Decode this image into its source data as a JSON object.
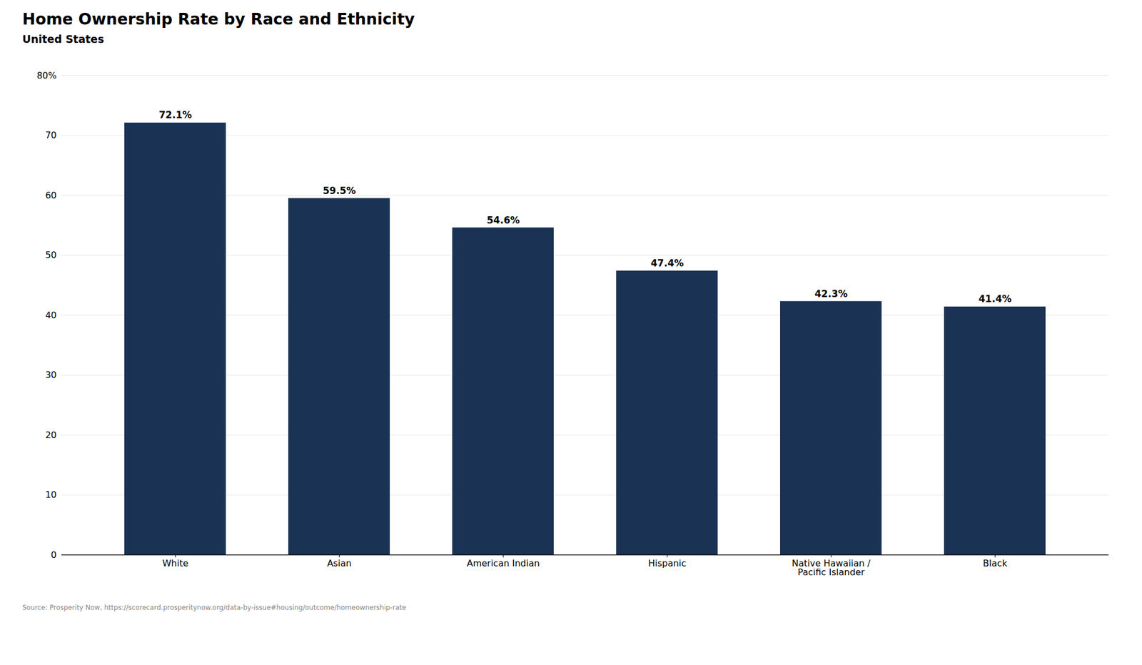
{
  "chart_data": {
    "type": "bar",
    "title": "Home Ownership Rate by Race and Ethnicity",
    "subtitle": "United States",
    "source": "Source: Prosperity Now, https://scorecard.prosperitynow.org/data-by-issue#housing/outcome/homeownership-rate",
    "categories": [
      "White",
      "Asian",
      "American Indian",
      "Hispanic",
      "Native Hawaiian /\nPacific Islander",
      "Black"
    ],
    "values": [
      72.1,
      59.5,
      54.6,
      47.4,
      42.3,
      41.4
    ],
    "value_labels": [
      "72.1%",
      "59.5%",
      "54.6%",
      "47.4%",
      "42.3%",
      "41.4%"
    ],
    "data_labels": true,
    "color": "#1a3254",
    "ylim": [
      0,
      80
    ],
    "yticks": [
      0,
      10,
      20,
      30,
      40,
      50,
      60,
      70,
      {
        "value": 80,
        "label": "80%"
      }
    ],
    "grid": true
  }
}
